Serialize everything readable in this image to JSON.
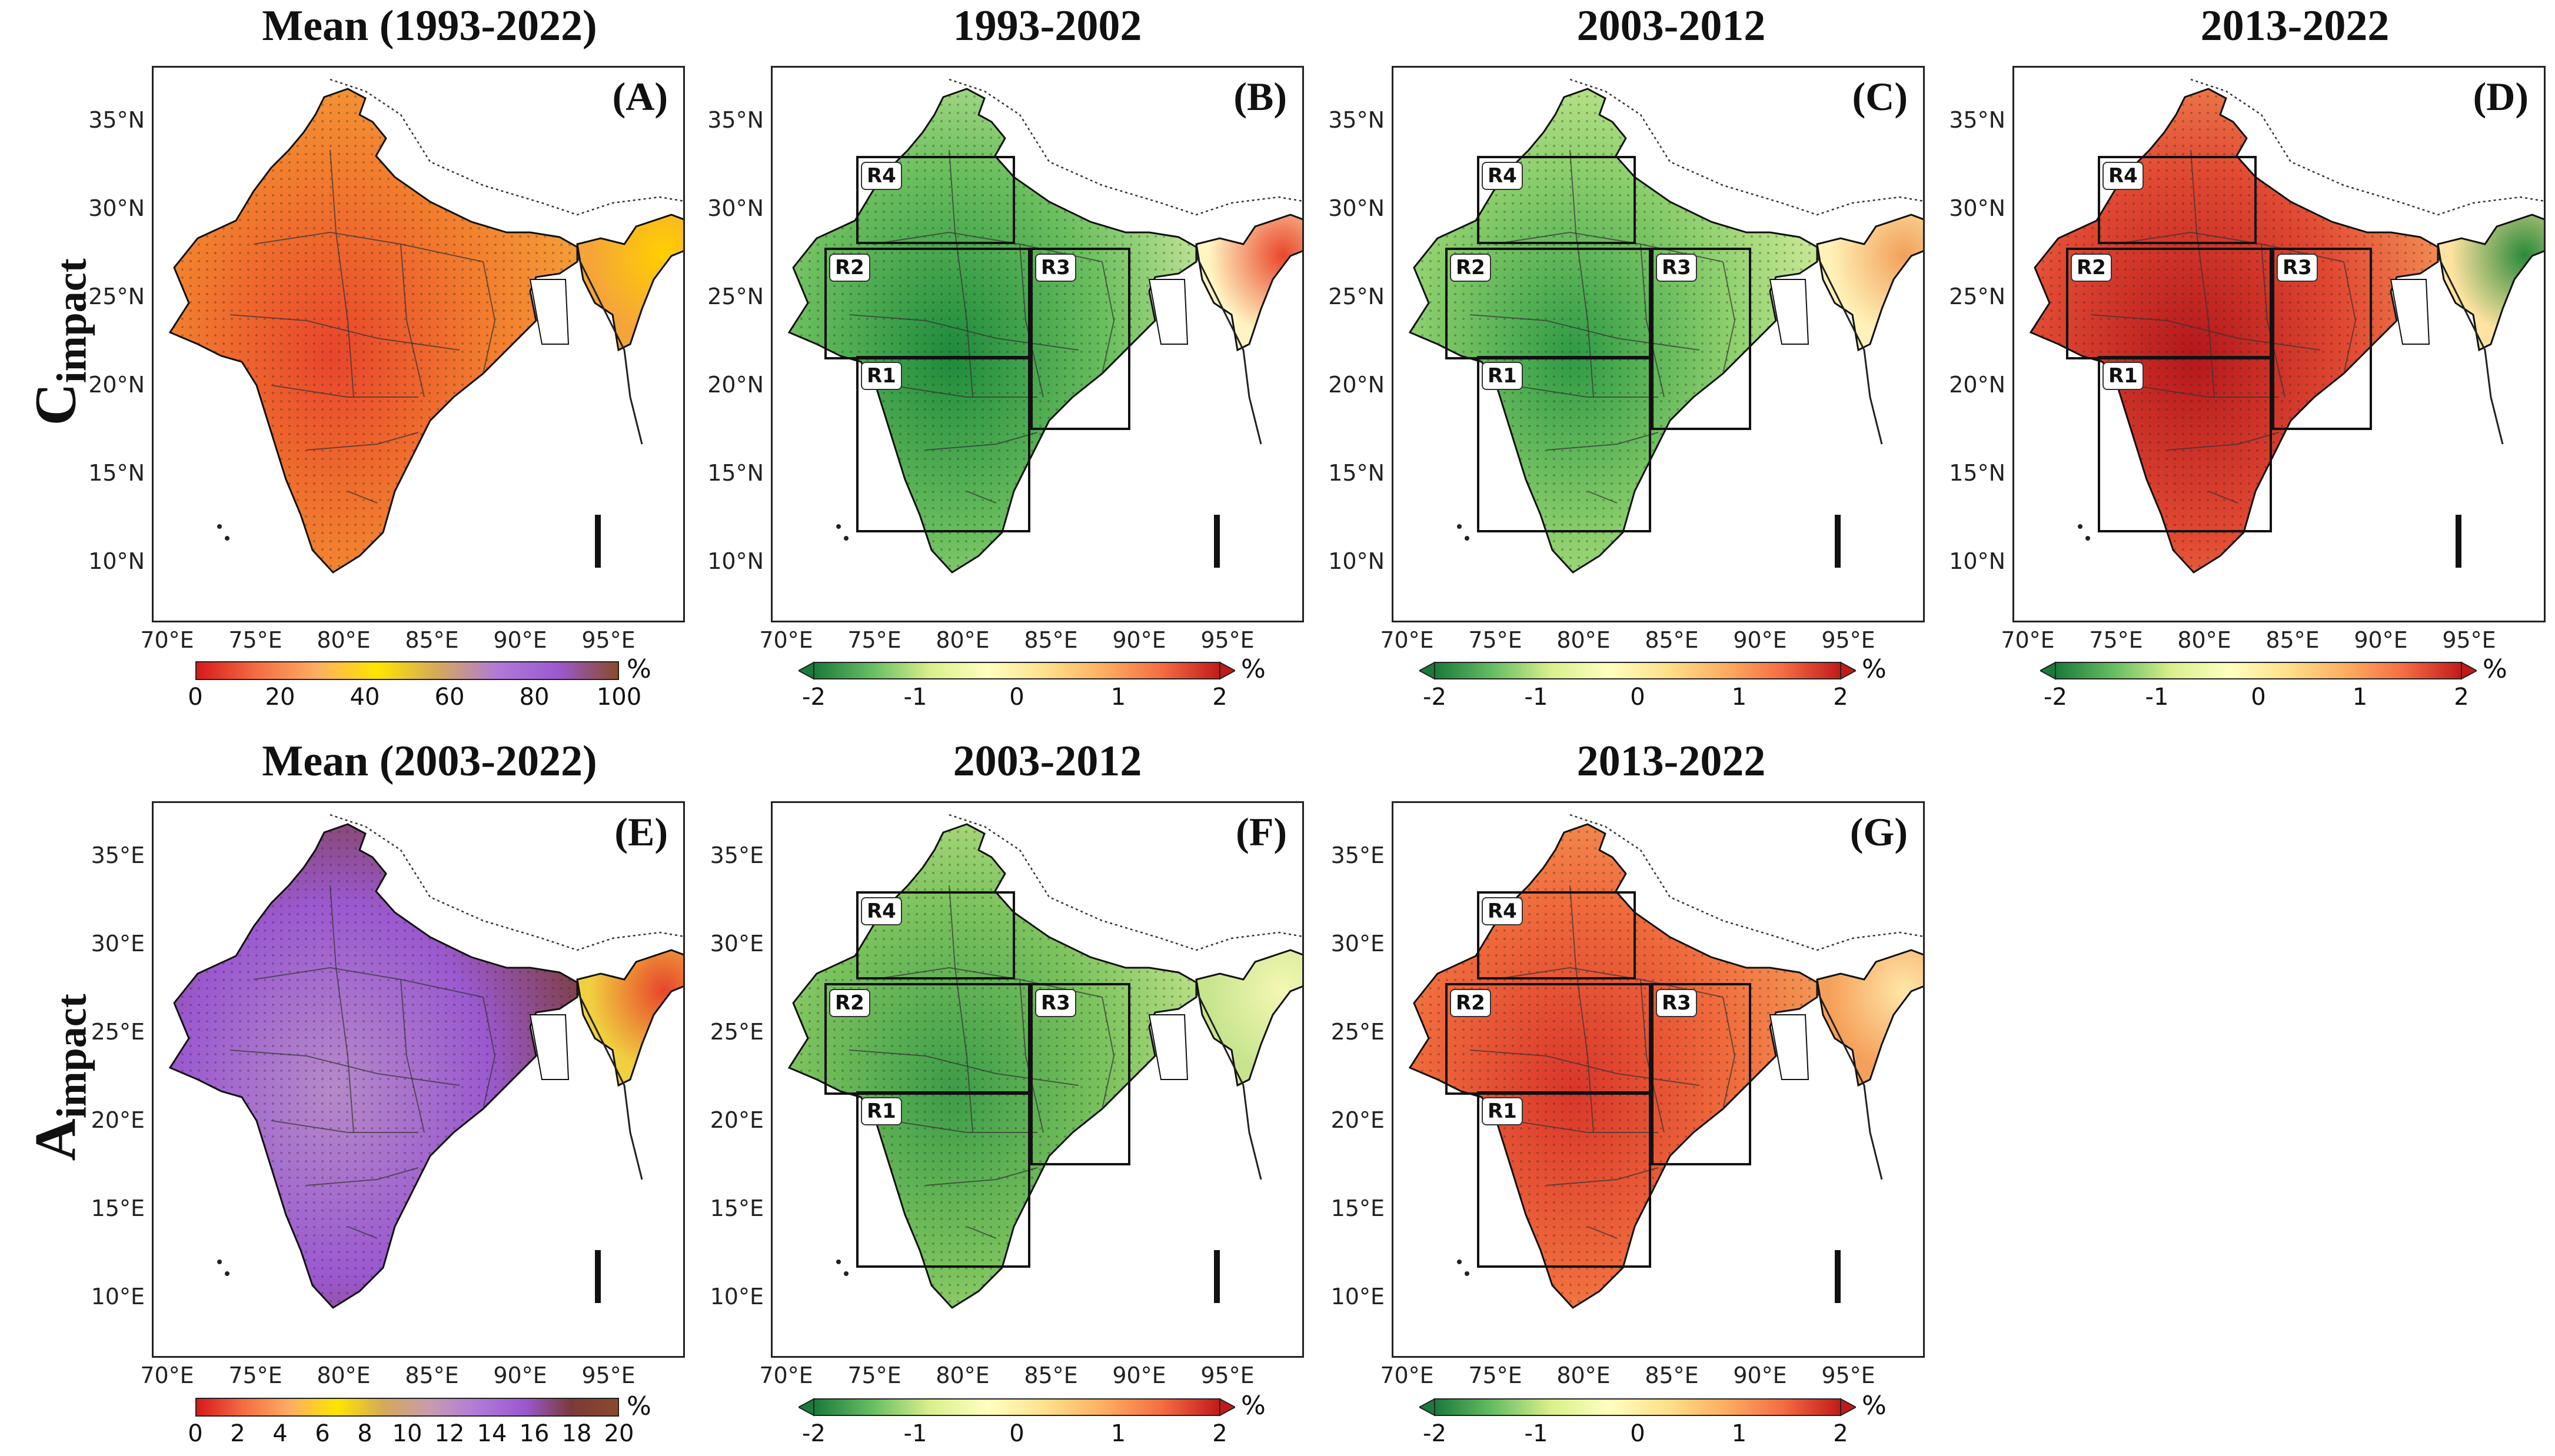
{
  "row_labels": {
    "top": {
      "main": "C",
      "sub": "impact"
    },
    "bottom": {
      "main": "A",
      "sub": "impact"
    }
  },
  "panels": [
    {
      "id": "A",
      "title": "Mean (1993-2022)",
      "tag": "(A)",
      "lat_labels": [
        "35°N",
        "30°N",
        "25°N",
        "20°N",
        "15°N",
        "10°N"
      ],
      "lon_labels": [
        "70°E",
        "75°E",
        "80°E",
        "85°E",
        "90°E",
        "95°E"
      ],
      "regions": []
    },
    {
      "id": "B",
      "title": "1993-2002",
      "tag": "(B)",
      "lat_labels": [
        "35°N",
        "30°N",
        "25°N",
        "20°N",
        "15°N",
        "10°N"
      ],
      "lon_labels": [
        "70°E",
        "75°E",
        "80°E",
        "85°E",
        "90°E",
        "95°E"
      ],
      "regions": [
        "R1",
        "R2",
        "R3",
        "R4"
      ]
    },
    {
      "id": "C",
      "title": "2003-2012",
      "tag": "(C)",
      "lat_labels": [
        "35°N",
        "30°N",
        "25°N",
        "20°N",
        "15°N",
        "10°N"
      ],
      "lon_labels": [
        "70°E",
        "75°E",
        "80°E",
        "85°E",
        "90°E",
        "95°E"
      ],
      "regions": [
        "R1",
        "R2",
        "R3",
        "R4"
      ]
    },
    {
      "id": "D",
      "title": "2013-2022",
      "tag": "(D)",
      "lat_labels": [
        "35°N",
        "30°N",
        "25°N",
        "20°N",
        "15°N",
        "10°N"
      ],
      "lon_labels": [
        "70°E",
        "75°E",
        "80°E",
        "85°E",
        "90°E",
        "95°E"
      ],
      "regions": [
        "R1",
        "R2",
        "R3",
        "R4"
      ]
    },
    {
      "id": "E",
      "title": "Mean (2003-2022)",
      "tag": "(E)",
      "lat_labels": [
        "35°E",
        "30°E",
        "25°E",
        "20°E",
        "15°E",
        "10°E"
      ],
      "lon_labels": [
        "70°E",
        "75°E",
        "80°E",
        "85°E",
        "90°E",
        "95°E"
      ],
      "regions": []
    },
    {
      "id": "F",
      "title": "2003-2012",
      "tag": "(F)",
      "lat_labels": [
        "35°E",
        "30°E",
        "25°E",
        "20°E",
        "15°E",
        "10°E"
      ],
      "lon_labels": [
        "70°E",
        "75°E",
        "80°E",
        "85°E",
        "90°E",
        "95°E"
      ],
      "regions": [
        "R1",
        "R2",
        "R3",
        "R4"
      ]
    },
    {
      "id": "G",
      "title": "2013-2022",
      "tag": "(G)",
      "lat_labels": [
        "35°E",
        "30°E",
        "25°E",
        "20°E",
        "15°E",
        "10°E"
      ],
      "lon_labels": [
        "70°E",
        "75°E",
        "80°E",
        "85°E",
        "90°E",
        "95°E"
      ],
      "regions": [
        "R1",
        "R2",
        "R3",
        "R4"
      ]
    }
  ],
  "colorbars": {
    "mean_c": {
      "ticks": [
        "0",
        "20",
        "40",
        "60",
        "80",
        "100"
      ],
      "unit": "%",
      "colors": [
        "#d7191c",
        "#f46d43",
        "#fdae61",
        "#ffe600",
        "#d4a95a",
        "#b07ad8",
        "#9b59d0",
        "#8b4a2b"
      ]
    },
    "mean_a": {
      "ticks": [
        "0",
        "2",
        "4",
        "6",
        "8",
        "10",
        "12",
        "14",
        "16",
        "18",
        "20"
      ],
      "unit": "%",
      "colors": [
        "#d7191c",
        "#f46d43",
        "#fdae61",
        "#ffe600",
        "#d4a95a",
        "#c79bb0",
        "#b07ad8",
        "#9b59d0",
        "#7a3a3a",
        "#8b4a2b"
      ]
    },
    "diff": {
      "ticks": [
        "-2",
        "-1",
        "0",
        "1",
        "2"
      ],
      "unit": "%",
      "colors": [
        "#1a7a3a",
        "#66bd63",
        "#d9ef8b",
        "#ffffbf",
        "#fee08b",
        "#fdae61",
        "#f46d43",
        "#c21a1a"
      ]
    }
  },
  "map_fills": {
    "A": [
      "#e8452c",
      "#f27d2e",
      "#f5a43a",
      "#ffd000"
    ],
    "B": [
      "#1e8a3c",
      "#6bbf5e",
      "#cfe9a0",
      "#fff5c2",
      "#e9472b"
    ],
    "C": [
      "#2e9a44",
      "#8ccf6c",
      "#d9ef9e",
      "#fff2b8",
      "#f2a05a"
    ],
    "D": [
      "#b5171b",
      "#e24a33",
      "#f59a5a",
      "#ffe3a0",
      "#2a8a3a"
    ],
    "E": [
      "#b58ac9",
      "#9b59d0",
      "#7a3a2a",
      "#e8b84a",
      "#f0d040",
      "#e8452c"
    ],
    "F": [
      "#3c9c48",
      "#7cc35e",
      "#c8e58e",
      "#f4f7b4"
    ],
    "G": [
      "#d9362a",
      "#f06a3c",
      "#f5a05a",
      "#ffe7a8"
    ]
  }
}
